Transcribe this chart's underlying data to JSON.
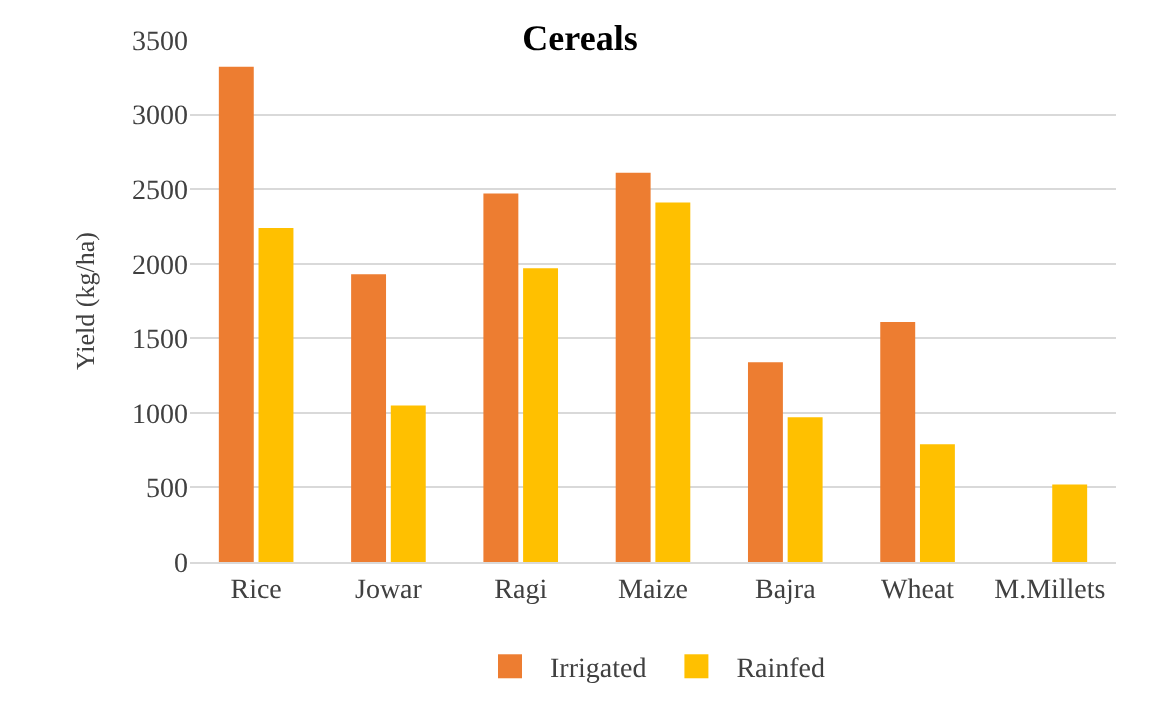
{
  "chart_data": {
    "type": "bar",
    "title": "Cereals",
    "ylabel": "Yield (kg/ha)",
    "categories": [
      "Rice",
      "Jowar",
      "Ragi",
      "Maize",
      "Bajra",
      "Wheat",
      "M.Millets"
    ],
    "series": [
      {
        "name": "Irrigated",
        "color": "#ed7d31",
        "values": [
          3320,
          1930,
          2470,
          2610,
          1340,
          1610,
          null
        ]
      },
      {
        "name": "Rainfed",
        "color": "#ffc000",
        "values": [
          2240,
          1050,
          1970,
          2410,
          970,
          790,
          520
        ]
      }
    ],
    "ylim": [
      0,
      3500
    ],
    "yticks": [
      0,
      500,
      1000,
      1500,
      2000,
      2500,
      3000,
      3500
    ],
    "grid": "y",
    "legend": "bottom"
  }
}
